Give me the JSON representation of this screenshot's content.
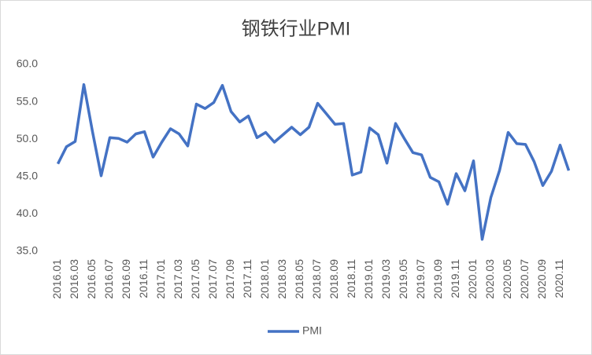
{
  "chart_data": {
    "type": "line",
    "title": "钢铁行业PMI",
    "categories": [
      "2016.01",
      null,
      "2016.03",
      null,
      "2016.05",
      null,
      "2016.07",
      null,
      "2016.09",
      null,
      "2016.11",
      null,
      "2017.01",
      null,
      "2017.03",
      null,
      "2017.05",
      null,
      "2017.07",
      null,
      "2017.09",
      null,
      "2017.11",
      null,
      "2018.01",
      null,
      "2018.03",
      null,
      "2018.05",
      null,
      "2018.07",
      null,
      "2018.09",
      null,
      "2018.11",
      null,
      "2019.01",
      null,
      "2019.03",
      null,
      "2019.05",
      null,
      "2019.07",
      null,
      "2019.09",
      null,
      "2019.11",
      null,
      "2020.01",
      null,
      "2020.03",
      null,
      "2020.05",
      null,
      "2020.07",
      null,
      "2020.09",
      null,
      "2020.11",
      null
    ],
    "series": [
      {
        "name": "PMI",
        "color": "#4472c4",
        "values": [
          46.7,
          49.0,
          49.7,
          57.3,
          51.0,
          45.1,
          50.2,
          50.1,
          49.6,
          50.7,
          51.0,
          47.6,
          49.6,
          51.4,
          50.7,
          49.1,
          54.7,
          54.1,
          54.9,
          57.2,
          53.7,
          52.3,
          53.1,
          50.2,
          50.9,
          49.6,
          50.6,
          51.6,
          50.6,
          51.6,
          54.8,
          53.4,
          52.0,
          52.1,
          45.2,
          45.6,
          51.5,
          50.6,
          46.8,
          52.1,
          50.1,
          48.2,
          47.9,
          44.9,
          44.3,
          41.3,
          45.4,
          43.1,
          47.1,
          36.6,
          42.2,
          45.8,
          50.9,
          49.4,
          49.3,
          47.0,
          43.8,
          45.7,
          49.2,
          45.8
        ]
      }
    ],
    "ylim": [
      35,
      60
    ],
    "yticks": [
      {
        "value": 35,
        "label": "35.0"
      },
      {
        "value": 40,
        "label": "40.0"
      },
      {
        "value": 45,
        "label": "45.0"
      },
      {
        "value": 50,
        "label": "50.0"
      },
      {
        "value": 55,
        "label": "55.0"
      },
      {
        "value": 60,
        "label": "60.0"
      }
    ],
    "grid": false,
    "legend": "bottom"
  }
}
